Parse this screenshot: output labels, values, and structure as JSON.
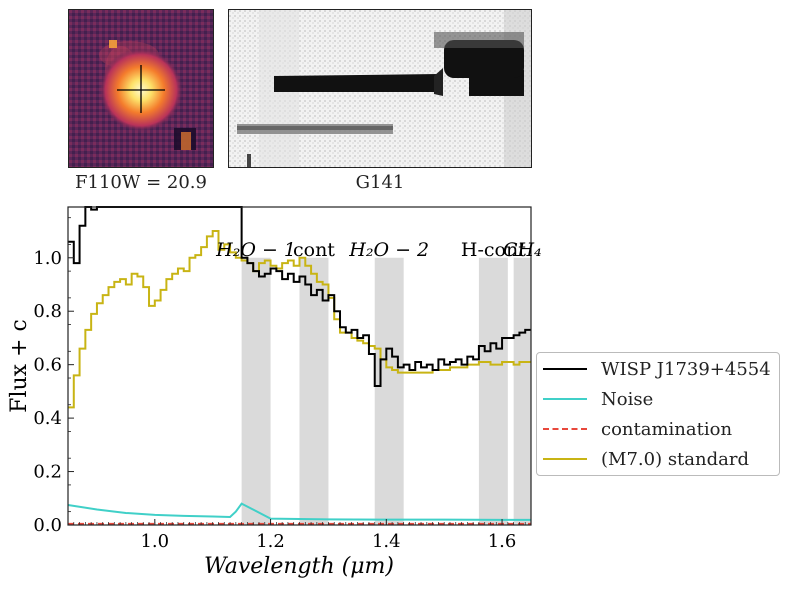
{
  "thumbnails": {
    "direct": {
      "caption": "F110W = 20.9",
      "description": "direct image cutout"
    },
    "grism": {
      "caption": "G141",
      "description": "grism 2D spectrum"
    }
  },
  "colors": {
    "spectrum": "#000000",
    "noise": "#40d0c8",
    "contamination": "#e8483c",
    "standard": "#c8b414",
    "band": "#dadada"
  },
  "chart_data": {
    "type": "line",
    "xlabel": "Wavelength (μm)",
    "ylabel": "Flux + c",
    "xlim": [
      0.85,
      1.65
    ],
    "ylim": [
      0.0,
      1.19
    ],
    "xticks": [
      1.0,
      1.2,
      1.4,
      1.6
    ],
    "xtick_labels": [
      "1.0",
      "1.2",
      "1.4",
      "1.6"
    ],
    "yticks": [
      0.0,
      0.2,
      0.4,
      0.6,
      0.8,
      1.0
    ],
    "ytick_labels": [
      "0.0",
      "0.2",
      "0.4",
      "0.6",
      "0.8",
      "1.0"
    ],
    "bands": [
      {
        "label": "H₂O − 1",
        "x0": 1.15,
        "x1": 1.2
      },
      {
        "label": "cont",
        "x0": 1.25,
        "x1": 1.3
      },
      {
        "label": "H₂O − 2",
        "x0": 1.38,
        "x1": 1.43
      },
      {
        "label": "H-cont",
        "x0": 1.56,
        "x1": 1.61
      },
      {
        "label": "CH₄",
        "x0": 1.62,
        "x1": 1.67
      }
    ],
    "series": [
      {
        "name": "WISP J1739+4554",
        "x": [
          0.85,
          0.86,
          0.87,
          0.88,
          0.89,
          0.9,
          0.91,
          0.92,
          0.93,
          0.94,
          0.95,
          0.96,
          0.97,
          0.98,
          0.99,
          1.0,
          1.01,
          1.02,
          1.03,
          1.04,
          1.05,
          1.06,
          1.07,
          1.08,
          1.09,
          1.1,
          1.11,
          1.12,
          1.13,
          1.14,
          1.15,
          1.16,
          1.17,
          1.18,
          1.19,
          1.2,
          1.21,
          1.22,
          1.23,
          1.24,
          1.25,
          1.26,
          1.27,
          1.28,
          1.29,
          1.3,
          1.31,
          1.32,
          1.33,
          1.34,
          1.35,
          1.36,
          1.37,
          1.38,
          1.39,
          1.4,
          1.41,
          1.42,
          1.43,
          1.44,
          1.45,
          1.46,
          1.47,
          1.48,
          1.49,
          1.5,
          1.51,
          1.52,
          1.53,
          1.54,
          1.55,
          1.56,
          1.57,
          1.58,
          1.59,
          1.6,
          1.61,
          1.62,
          1.63,
          1.64,
          1.65
        ],
        "values": [
          1.06,
          0.98,
          1.12,
          1.19,
          1.18,
          1.19,
          1.19,
          1.19,
          1.19,
          1.19,
          1.19,
          1.19,
          1.19,
          1.19,
          1.19,
          1.19,
          1.19,
          1.19,
          1.19,
          1.19,
          1.19,
          1.19,
          1.19,
          1.19,
          1.19,
          1.19,
          1.19,
          1.19,
          1.19,
          1.19,
          1.0,
          0.98,
          0.95,
          0.93,
          0.94,
          0.96,
          0.95,
          0.92,
          0.94,
          0.91,
          0.93,
          0.9,
          0.86,
          0.88,
          0.84,
          0.86,
          0.8,
          0.74,
          0.72,
          0.73,
          0.7,
          0.71,
          0.64,
          0.52,
          0.62,
          0.66,
          0.63,
          0.59,
          0.6,
          0.58,
          0.61,
          0.59,
          0.6,
          0.58,
          0.62,
          0.6,
          0.61,
          0.62,
          0.6,
          0.63,
          0.62,
          0.67,
          0.65,
          0.68,
          0.66,
          0.7,
          0.7,
          0.71,
          0.72,
          0.73,
          0.73
        ]
      },
      {
        "name": "Noise",
        "x": [
          0.85,
          0.9,
          0.95,
          1.0,
          1.05,
          1.1,
          1.13,
          1.14,
          1.15,
          1.2,
          1.3,
          1.4,
          1.5,
          1.6,
          1.65
        ],
        "values": [
          0.075,
          0.058,
          0.045,
          0.038,
          0.034,
          0.032,
          0.03,
          0.05,
          0.08,
          0.024,
          0.021,
          0.02,
          0.02,
          0.019,
          0.019
        ]
      },
      {
        "name": "contamination",
        "x": [
          0.85,
          1.65
        ],
        "values": [
          0.004,
          0.004
        ]
      },
      {
        "name": "(M7.0) standard",
        "x": [
          0.85,
          0.86,
          0.87,
          0.88,
          0.89,
          0.9,
          0.91,
          0.92,
          0.93,
          0.94,
          0.95,
          0.96,
          0.97,
          0.98,
          0.99,
          1.0,
          1.01,
          1.02,
          1.03,
          1.04,
          1.05,
          1.06,
          1.07,
          1.08,
          1.09,
          1.1,
          1.11,
          1.12,
          1.13,
          1.14,
          1.15,
          1.16,
          1.17,
          1.18,
          1.19,
          1.2,
          1.21,
          1.22,
          1.23,
          1.24,
          1.25,
          1.26,
          1.27,
          1.28,
          1.29,
          1.3,
          1.31,
          1.32,
          1.33,
          1.34,
          1.35,
          1.36,
          1.37,
          1.38,
          1.39,
          1.4,
          1.41,
          1.42,
          1.43,
          1.44,
          1.45,
          1.46,
          1.47,
          1.48,
          1.49,
          1.5,
          1.51,
          1.52,
          1.53,
          1.54,
          1.55,
          1.56,
          1.57,
          1.58,
          1.59,
          1.6,
          1.61,
          1.62,
          1.63,
          1.64,
          1.65
        ],
        "values": [
          0.44,
          0.56,
          0.66,
          0.73,
          0.79,
          0.83,
          0.86,
          0.89,
          0.91,
          0.92,
          0.9,
          0.94,
          0.93,
          0.89,
          0.82,
          0.84,
          0.88,
          0.92,
          0.94,
          0.96,
          0.95,
          1.0,
          1.01,
          1.04,
          1.08,
          1.1,
          1.03,
          1.05,
          1.02,
          1.0,
          0.99,
          0.98,
          0.95,
          0.98,
          0.99,
          0.97,
          0.96,
          0.98,
          0.99,
          0.97,
          1.0,
          0.97,
          0.94,
          0.91,
          0.9,
          0.85,
          0.77,
          0.72,
          0.72,
          0.7,
          0.69,
          0.68,
          0.67,
          0.66,
          0.62,
          0.59,
          0.58,
          0.57,
          0.57,
          0.57,
          0.57,
          0.57,
          0.57,
          0.58,
          0.58,
          0.58,
          0.59,
          0.59,
          0.59,
          0.6,
          0.6,
          0.61,
          0.61,
          0.6,
          0.6,
          0.61,
          0.61,
          0.6,
          0.61,
          0.61,
          0.61
        ]
      }
    ],
    "legend": {
      "placement": "lower-right-outside",
      "entries": [
        "WISP J1739+4554",
        "Noise",
        "contamination",
        "(M7.0) standard"
      ]
    }
  }
}
